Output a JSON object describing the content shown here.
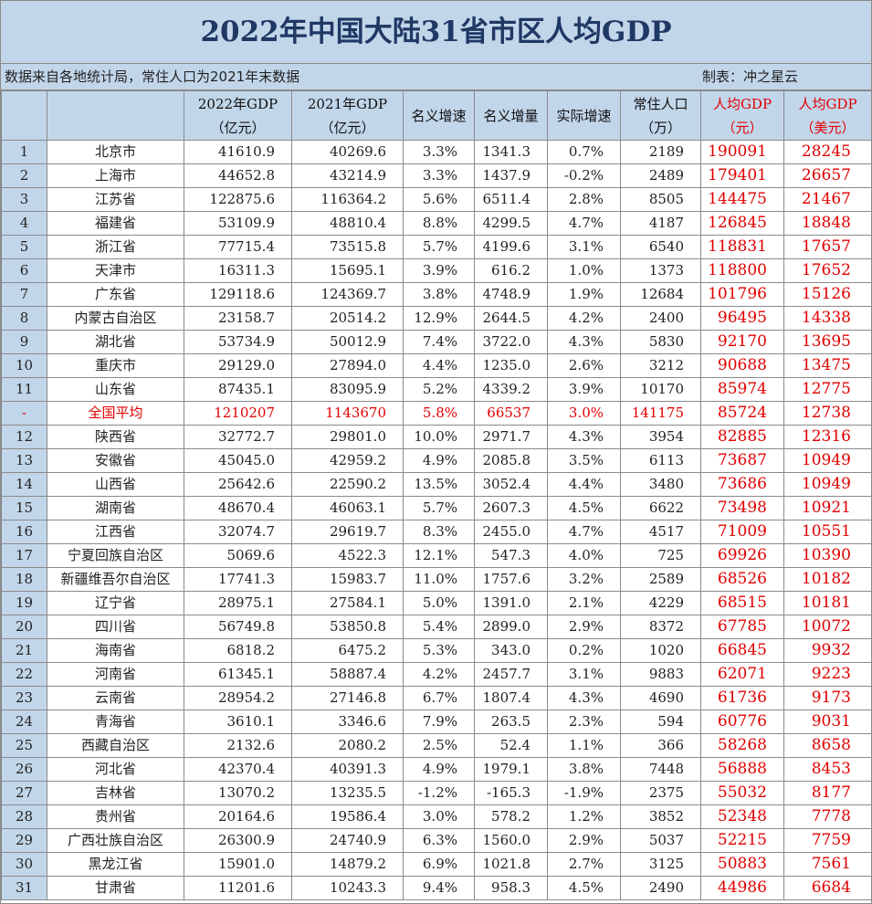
{
  "title": "2022年中国大陆31省市区人均GDP",
  "source_note": "数据来自各地统计局，常住人口为2021年末数据",
  "maker": "制表：冲之星云",
  "headers": {
    "gdp2022": [
      "2022年GDP",
      "（亿元）"
    ],
    "gdp2021": [
      "2021年GDP",
      "（亿元）"
    ],
    "nominal_growth": "名义增速",
    "nominal_increase": "名义增量",
    "real_growth": "实际增速",
    "population": [
      "常住人口",
      "（万）"
    ],
    "pc_yuan": [
      "人均GDP",
      "（元）"
    ],
    "pc_usd": [
      "人均GDP",
      "（美元）"
    ]
  },
  "rows": [
    {
      "rank": "1",
      "name": "北京市",
      "gdp2022": "41610.9",
      "gdp2021": "40269.6",
      "ng": "3.3%",
      "ni": "1341.3",
      "rg": "0.7%",
      "pop": "2189",
      "pcy": "190091",
      "pcu": "28245"
    },
    {
      "rank": "2",
      "name": "上海市",
      "gdp2022": "44652.8",
      "gdp2021": "43214.9",
      "ng": "3.3%",
      "ni": "1437.9",
      "rg": "-0.2%",
      "pop": "2489",
      "pcy": "179401",
      "pcu": "26657"
    },
    {
      "rank": "3",
      "name": "江苏省",
      "gdp2022": "122875.6",
      "gdp2021": "116364.2",
      "ng": "5.6%",
      "ni": "6511.4",
      "rg": "2.8%",
      "pop": "8505",
      "pcy": "144475",
      "pcu": "21467"
    },
    {
      "rank": "4",
      "name": "福建省",
      "gdp2022": "53109.9",
      "gdp2021": "48810.4",
      "ng": "8.8%",
      "ni": "4299.5",
      "rg": "4.7%",
      "pop": "4187",
      "pcy": "126845",
      "pcu": "18848"
    },
    {
      "rank": "5",
      "name": "浙江省",
      "gdp2022": "77715.4",
      "gdp2021": "73515.8",
      "ng": "5.7%",
      "ni": "4199.6",
      "rg": "3.1%",
      "pop": "6540",
      "pcy": "118831",
      "pcu": "17657"
    },
    {
      "rank": "6",
      "name": "天津市",
      "gdp2022": "16311.3",
      "gdp2021": "15695.1",
      "ng": "3.9%",
      "ni": "616.2",
      "rg": "1.0%",
      "pop": "1373",
      "pcy": "118800",
      "pcu": "17652"
    },
    {
      "rank": "7",
      "name": "广东省",
      "gdp2022": "129118.6",
      "gdp2021": "124369.7",
      "ng": "3.8%",
      "ni": "4748.9",
      "rg": "1.9%",
      "pop": "12684",
      "pcy": "101796",
      "pcu": "15126"
    },
    {
      "rank": "8",
      "name": "内蒙古自治区",
      "gdp2022": "23158.7",
      "gdp2021": "20514.2",
      "ng": "12.9%",
      "ni": "2644.5",
      "rg": "4.2%",
      "pop": "2400",
      "pcy": "96495",
      "pcu": "14338"
    },
    {
      "rank": "9",
      "name": "湖北省",
      "gdp2022": "53734.9",
      "gdp2021": "50012.9",
      "ng": "7.4%",
      "ni": "3722.0",
      "rg": "4.3%",
      "pop": "5830",
      "pcy": "92170",
      "pcu": "13695"
    },
    {
      "rank": "10",
      "name": "重庆市",
      "gdp2022": "29129.0",
      "gdp2021": "27894.0",
      "ng": "4.4%",
      "ni": "1235.0",
      "rg": "2.6%",
      "pop": "3212",
      "pcy": "90688",
      "pcu": "13475"
    },
    {
      "rank": "11",
      "name": "山东省",
      "gdp2022": "87435.1",
      "gdp2021": "83095.9",
      "ng": "5.2%",
      "ni": "4339.2",
      "rg": "3.9%",
      "pop": "10170",
      "pcy": "85974",
      "pcu": "12775"
    },
    {
      "rank": "-",
      "name": "全国平均",
      "gdp2022": "1210207",
      "gdp2021": "1143670",
      "ng": "5.8%",
      "ni": "66537",
      "rg": "3.0%",
      "pop": "141175",
      "pcy": "85724",
      "pcu": "12738",
      "avg": true
    },
    {
      "rank": "12",
      "name": "陕西省",
      "gdp2022": "32772.7",
      "gdp2021": "29801.0",
      "ng": "10.0%",
      "ni": "2971.7",
      "rg": "4.3%",
      "pop": "3954",
      "pcy": "82885",
      "pcu": "12316"
    },
    {
      "rank": "13",
      "name": "安徽省",
      "gdp2022": "45045.0",
      "gdp2021": "42959.2",
      "ng": "4.9%",
      "ni": "2085.8",
      "rg": "3.5%",
      "pop": "6113",
      "pcy": "73687",
      "pcu": "10949"
    },
    {
      "rank": "14",
      "name": "山西省",
      "gdp2022": "25642.6",
      "gdp2021": "22590.2",
      "ng": "13.5%",
      "ni": "3052.4",
      "rg": "4.4%",
      "pop": "3480",
      "pcy": "73686",
      "pcu": "10949"
    },
    {
      "rank": "15",
      "name": "湖南省",
      "gdp2022": "48670.4",
      "gdp2021": "46063.1",
      "ng": "5.7%",
      "ni": "2607.3",
      "rg": "4.5%",
      "pop": "6622",
      "pcy": "73498",
      "pcu": "10921"
    },
    {
      "rank": "16",
      "name": "江西省",
      "gdp2022": "32074.7",
      "gdp2021": "29619.7",
      "ng": "8.3%",
      "ni": "2455.0",
      "rg": "4.7%",
      "pop": "4517",
      "pcy": "71009",
      "pcu": "10551"
    },
    {
      "rank": "17",
      "name": "宁夏回族自治区",
      "gdp2022": "5069.6",
      "gdp2021": "4522.3",
      "ng": "12.1%",
      "ni": "547.3",
      "rg": "4.0%",
      "pop": "725",
      "pcy": "69926",
      "pcu": "10390"
    },
    {
      "rank": "18",
      "name": "新疆维吾尔自治区",
      "gdp2022": "17741.3",
      "gdp2021": "15983.7",
      "ng": "11.0%",
      "ni": "1757.6",
      "rg": "3.2%",
      "pop": "2589",
      "pcy": "68526",
      "pcu": "10182"
    },
    {
      "rank": "19",
      "name": "辽宁省",
      "gdp2022": "28975.1",
      "gdp2021": "27584.1",
      "ng": "5.0%",
      "ni": "1391.0",
      "rg": "2.1%",
      "pop": "4229",
      "pcy": "68515",
      "pcu": "10181"
    },
    {
      "rank": "20",
      "name": "四川省",
      "gdp2022": "56749.8",
      "gdp2021": "53850.8",
      "ng": "5.4%",
      "ni": "2899.0",
      "rg": "2.9%",
      "pop": "8372",
      "pcy": "67785",
      "pcu": "10072"
    },
    {
      "rank": "21",
      "name": "海南省",
      "gdp2022": "6818.2",
      "gdp2021": "6475.2",
      "ng": "5.3%",
      "ni": "343.0",
      "rg": "0.2%",
      "pop": "1020",
      "pcy": "66845",
      "pcu": "9932"
    },
    {
      "rank": "22",
      "name": "河南省",
      "gdp2022": "61345.1",
      "gdp2021": "58887.4",
      "ng": "4.2%",
      "ni": "2457.7",
      "rg": "3.1%",
      "pop": "9883",
      "pcy": "62071",
      "pcu": "9223"
    },
    {
      "rank": "23",
      "name": "云南省",
      "gdp2022": "28954.2",
      "gdp2021": "27146.8",
      "ng": "6.7%",
      "ni": "1807.4",
      "rg": "4.3%",
      "pop": "4690",
      "pcy": "61736",
      "pcu": "9173"
    },
    {
      "rank": "24",
      "name": "青海省",
      "gdp2022": "3610.1",
      "gdp2021": "3346.6",
      "ng": "7.9%",
      "ni": "263.5",
      "rg": "2.3%",
      "pop": "594",
      "pcy": "60776",
      "pcu": "9031"
    },
    {
      "rank": "25",
      "name": "西藏自治区",
      "gdp2022": "2132.6",
      "gdp2021": "2080.2",
      "ng": "2.5%",
      "ni": "52.4",
      "rg": "1.1%",
      "pop": "366",
      "pcy": "58268",
      "pcu": "8658"
    },
    {
      "rank": "26",
      "name": "河北省",
      "gdp2022": "42370.4",
      "gdp2021": "40391.3",
      "ng": "4.9%",
      "ni": "1979.1",
      "rg": "3.8%",
      "pop": "7448",
      "pcy": "56888",
      "pcu": "8453"
    },
    {
      "rank": "27",
      "name": "吉林省",
      "gdp2022": "13070.2",
      "gdp2021": "13235.5",
      "ng": "-1.2%",
      "ni": "-165.3",
      "rg": "-1.9%",
      "pop": "2375",
      "pcy": "55032",
      "pcu": "8177"
    },
    {
      "rank": "28",
      "name": "贵州省",
      "gdp2022": "20164.6",
      "gdp2021": "19586.4",
      "ng": "3.0%",
      "ni": "578.2",
      "rg": "1.2%",
      "pop": "3852",
      "pcy": "52348",
      "pcu": "7778"
    },
    {
      "rank": "29",
      "name": "广西壮族自治区",
      "gdp2022": "26300.9",
      "gdp2021": "24740.9",
      "ng": "6.3%",
      "ni": "1560.0",
      "rg": "2.9%",
      "pop": "5037",
      "pcy": "52215",
      "pcu": "7759"
    },
    {
      "rank": "30",
      "name": "黑龙江省",
      "gdp2022": "15901.0",
      "gdp2021": "14879.2",
      "ng": "6.9%",
      "ni": "1021.8",
      "rg": "2.7%",
      "pop": "3125",
      "pcy": "50883",
      "pcu": "7561"
    },
    {
      "rank": "31",
      "name": "甘肃省",
      "gdp2022": "11201.6",
      "gdp2021": "10243.3",
      "ng": "9.4%",
      "ni": "958.3",
      "rg": "4.5%",
      "pop": "2490",
      "pcy": "44986",
      "pcu": "6684"
    }
  ]
}
